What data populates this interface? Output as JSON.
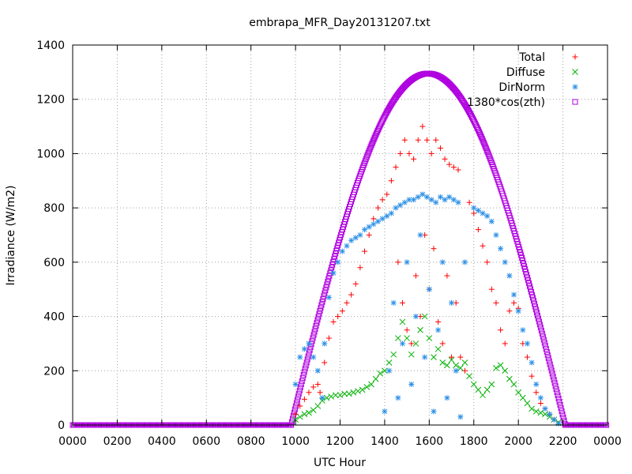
{
  "chart_data": {
    "type": "scatter",
    "title": "embrapa_MFR_Day20131207.txt",
    "xlabel": "UTC Hour",
    "ylabel": "Irradiance (W/m2)",
    "xlim": [
      0,
      24
    ],
    "ylim": [
      0,
      1400
    ],
    "x_ticks": [
      {
        "value": 0,
        "label": "0000"
      },
      {
        "value": 2,
        "label": "0200"
      },
      {
        "value": 4,
        "label": "0400"
      },
      {
        "value": 6,
        "label": "0600"
      },
      {
        "value": 8,
        "label": "0800"
      },
      {
        "value": 10,
        "label": "1000"
      },
      {
        "value": 12,
        "label": "1200"
      },
      {
        "value": 14,
        "label": "1400"
      },
      {
        "value": 16,
        "label": "1600"
      },
      {
        "value": 18,
        "label": "1800"
      },
      {
        "value": 20,
        "label": "2000"
      },
      {
        "value": 22,
        "label": "2200"
      },
      {
        "value": 24,
        "label": "0000"
      }
    ],
    "y_ticks": [
      0,
      200,
      400,
      600,
      800,
      1000,
      1200,
      1400
    ],
    "grid": true,
    "legend_position": "top-right",
    "series": [
      {
        "name": "Total",
        "color": "#ff0000",
        "marker": "plus",
        "points": [
          [
            10.0,
            40
          ],
          [
            10.2,
            70
          ],
          [
            10.4,
            95
          ],
          [
            10.6,
            120
          ],
          [
            10.8,
            140
          ],
          [
            11.0,
            150
          ],
          [
            11.1,
            120
          ],
          [
            11.3,
            230
          ],
          [
            11.5,
            320
          ],
          [
            11.7,
            380
          ],
          [
            11.9,
            400
          ],
          [
            12.1,
            420
          ],
          [
            12.3,
            450
          ],
          [
            12.5,
            480
          ],
          [
            12.7,
            520
          ],
          [
            12.9,
            580
          ],
          [
            13.1,
            640
          ],
          [
            13.3,
            700
          ],
          [
            13.5,
            760
          ],
          [
            13.7,
            800
          ],
          [
            13.9,
            830
          ],
          [
            14.1,
            850
          ],
          [
            14.3,
            900
          ],
          [
            14.5,
            950
          ],
          [
            14.7,
            1000
          ],
          [
            14.9,
            1050
          ],
          [
            15.1,
            1000
          ],
          [
            15.3,
            980
          ],
          [
            15.5,
            1050
          ],
          [
            15.7,
            1100
          ],
          [
            15.9,
            1050
          ],
          [
            16.1,
            1000
          ],
          [
            16.3,
            1050
          ],
          [
            16.5,
            1020
          ],
          [
            16.7,
            980
          ],
          [
            16.9,
            960
          ],
          [
            17.1,
            950
          ],
          [
            17.3,
            940
          ],
          [
            14.6,
            600
          ],
          [
            14.8,
            450
          ],
          [
            15.0,
            350
          ],
          [
            15.2,
            300
          ],
          [
            15.4,
            550
          ],
          [
            15.6,
            400
          ],
          [
            15.8,
            700
          ],
          [
            16.0,
            500
          ],
          [
            16.2,
            650
          ],
          [
            16.4,
            380
          ],
          [
            16.6,
            300
          ],
          [
            16.8,
            550
          ],
          [
            17.0,
            250
          ],
          [
            17.2,
            450
          ],
          [
            17.4,
            250
          ],
          [
            17.6,
            200
          ],
          [
            17.8,
            820
          ],
          [
            18.0,
            780
          ],
          [
            18.2,
            720
          ],
          [
            18.4,
            660
          ],
          [
            18.6,
            600
          ],
          [
            18.8,
            500
          ],
          [
            19.0,
            450
          ],
          [
            19.2,
            350
          ],
          [
            19.4,
            300
          ],
          [
            19.6,
            420
          ],
          [
            19.8,
            450
          ],
          [
            20.0,
            430
          ],
          [
            20.2,
            300
          ],
          [
            20.4,
            250
          ],
          [
            20.6,
            180
          ],
          [
            20.8,
            120
          ],
          [
            21.0,
            80
          ],
          [
            21.2,
            60
          ],
          [
            21.4,
            40
          ],
          [
            21.6,
            20
          ]
        ]
      },
      {
        "name": "Diffuse",
        "color": "#00b000",
        "marker": "cross",
        "points": [
          [
            10.0,
            20
          ],
          [
            10.2,
            30
          ],
          [
            10.4,
            40
          ],
          [
            10.6,
            45
          ],
          [
            10.8,
            55
          ],
          [
            11.0,
            70
          ],
          [
            11.2,
            90
          ],
          [
            11.4,
            100
          ],
          [
            11.6,
            105
          ],
          [
            11.8,
            110
          ],
          [
            12.0,
            110
          ],
          [
            12.2,
            115
          ],
          [
            12.4,
            115
          ],
          [
            12.6,
            120
          ],
          [
            12.8,
            125
          ],
          [
            13.0,
            130
          ],
          [
            13.2,
            140
          ],
          [
            13.4,
            150
          ],
          [
            13.6,
            170
          ],
          [
            13.8,
            190
          ],
          [
            14.0,
            200
          ],
          [
            14.2,
            230
          ],
          [
            14.4,
            260
          ],
          [
            14.6,
            320
          ],
          [
            14.8,
            380
          ],
          [
            15.0,
            320
          ],
          [
            15.2,
            260
          ],
          [
            15.4,
            300
          ],
          [
            15.6,
            350
          ],
          [
            15.8,
            400
          ],
          [
            16.0,
            320
          ],
          [
            16.2,
            250
          ],
          [
            16.4,
            280
          ],
          [
            16.6,
            230
          ],
          [
            16.8,
            220
          ],
          [
            17.0,
            240
          ],
          [
            17.2,
            220
          ],
          [
            17.4,
            210
          ],
          [
            17.6,
            230
          ],
          [
            17.8,
            180
          ],
          [
            18.0,
            150
          ],
          [
            18.2,
            130
          ],
          [
            18.4,
            110
          ],
          [
            18.6,
            130
          ],
          [
            18.8,
            150
          ],
          [
            19.0,
            210
          ],
          [
            19.2,
            220
          ],
          [
            19.4,
            200
          ],
          [
            19.6,
            170
          ],
          [
            19.8,
            150
          ],
          [
            20.0,
            120
          ],
          [
            20.2,
            100
          ],
          [
            20.4,
            80
          ],
          [
            20.6,
            60
          ],
          [
            20.8,
            50
          ],
          [
            21.0,
            45
          ],
          [
            21.2,
            40
          ],
          [
            21.4,
            30
          ],
          [
            21.6,
            20
          ],
          [
            21.8,
            10
          ]
        ]
      },
      {
        "name": "DirNorm",
        "color": "#2b8fe6",
        "marker": "star",
        "points": [
          [
            10.0,
            150
          ],
          [
            10.2,
            250
          ],
          [
            10.4,
            280
          ],
          [
            10.6,
            300
          ],
          [
            10.8,
            250
          ],
          [
            11.0,
            200
          ],
          [
            11.2,
            100
          ],
          [
            11.3,
            300
          ],
          [
            11.5,
            470
          ],
          [
            11.7,
            560
          ],
          [
            11.9,
            600
          ],
          [
            12.1,
            640
          ],
          [
            12.3,
            660
          ],
          [
            12.5,
            680
          ],
          [
            12.7,
            690
          ],
          [
            12.9,
            700
          ],
          [
            13.1,
            720
          ],
          [
            13.3,
            730
          ],
          [
            13.5,
            740
          ],
          [
            13.7,
            750
          ],
          [
            13.9,
            760
          ],
          [
            14.1,
            770
          ],
          [
            14.3,
            780
          ],
          [
            14.5,
            800
          ],
          [
            14.7,
            810
          ],
          [
            14.9,
            820
          ],
          [
            15.1,
            830
          ],
          [
            15.3,
            830
          ],
          [
            15.5,
            840
          ],
          [
            15.7,
            850
          ],
          [
            15.9,
            840
          ],
          [
            16.1,
            830
          ],
          [
            16.3,
            820
          ],
          [
            16.5,
            840
          ],
          [
            16.7,
            830
          ],
          [
            16.9,
            840
          ],
          [
            17.1,
            830
          ],
          [
            17.3,
            820
          ],
          [
            14.0,
            50
          ],
          [
            14.2,
            200
          ],
          [
            14.4,
            450
          ],
          [
            14.6,
            100
          ],
          [
            14.8,
            300
          ],
          [
            15.0,
            600
          ],
          [
            15.2,
            150
          ],
          [
            15.4,
            400
          ],
          [
            15.6,
            700
          ],
          [
            15.8,
            250
          ],
          [
            16.0,
            500
          ],
          [
            16.2,
            50
          ],
          [
            16.4,
            350
          ],
          [
            16.6,
            600
          ],
          [
            16.8,
            100
          ],
          [
            17.0,
            450
          ],
          [
            17.2,
            200
          ],
          [
            17.4,
            30
          ],
          [
            17.6,
            600
          ],
          [
            18.0,
            800
          ],
          [
            18.2,
            790
          ],
          [
            18.4,
            780
          ],
          [
            18.6,
            770
          ],
          [
            18.8,
            750
          ],
          [
            19.0,
            700
          ],
          [
            19.2,
            650
          ],
          [
            19.4,
            600
          ],
          [
            19.6,
            550
          ],
          [
            19.8,
            480
          ],
          [
            20.0,
            420
          ],
          [
            20.2,
            350
          ],
          [
            20.4,
            300
          ],
          [
            20.6,
            230
          ],
          [
            20.8,
            150
          ],
          [
            21.0,
            100
          ],
          [
            21.2,
            60
          ],
          [
            21.4,
            40
          ],
          [
            21.6,
            20
          ],
          [
            21.8,
            5
          ]
        ]
      },
      {
        "name": "1380*cos(zth)",
        "color": "#b000e0",
        "marker": "square",
        "curve": {
          "start": 9.8,
          "end": 22.1,
          "peak_x": 15.95,
          "peak_y": 1295
        }
      }
    ]
  }
}
